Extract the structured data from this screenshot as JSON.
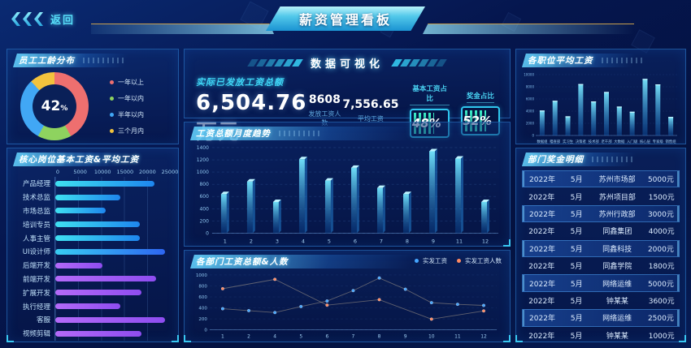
{
  "header": {
    "back_label": "返回",
    "title": "薪资管理看板"
  },
  "stats": {
    "section_title": "数据可视化",
    "total_label": "实际已发放工资总额",
    "total_value": "6,504.76万元",
    "headcount_value": "8608",
    "headcount_label": "发放工资人数",
    "avg_value": "7,556.65",
    "avg_label": "平均工资",
    "basic_ratio_label": "基本工资占比",
    "basic_ratio_value": "48%",
    "bonus_ratio_label": "奖金占比",
    "bonus_ratio_value": "52%"
  },
  "panels": {
    "seniority": {
      "title": "员工工龄分布"
    },
    "positions": {
      "title": "核心岗位基本工资&平均工资"
    },
    "monthly": {
      "title": "工资总额月度趋势"
    },
    "dept": {
      "title": "各部门工资总额&人数"
    },
    "avgpos": {
      "title": "各职位平均工资"
    },
    "bonus": {
      "title": "部门奖金明细"
    }
  },
  "chart_data": [
    {
      "id": "seniority",
      "type": "pie",
      "title": "员工工龄分布",
      "center_value": "42",
      "center_unit": "%",
      "labels": [
        "一年以上",
        "一年以内",
        "半年以内",
        "三个月内"
      ],
      "values": [
        42,
        16,
        30,
        12
      ],
      "colors": [
        "#ee6f6f",
        "#8ed35f",
        "#41a7f5",
        "#f2c23d"
      ],
      "legend_position": "right"
    },
    {
      "id": "positions",
      "type": "bar",
      "orientation": "horizontal",
      "title": "核心岗位基本工资&平均工资",
      "categories": [
        "产品经理",
        "技术总监",
        "市场总监",
        "培训专员",
        "人事主管",
        "UI设计师",
        "后端开发",
        "前端开发",
        "扩展开发",
        "执行经理",
        "客服",
        "视频剪辑"
      ],
      "values": [
        21700,
        14100,
        11000,
        18500,
        18500,
        24000,
        10300,
        21900,
        18800,
        14100,
        24000,
        18800
      ],
      "xlim": [
        0,
        25000
      ],
      "xticks": [
        "0",
        "5000",
        "10000",
        "15000",
        "20000",
        "25000"
      ],
      "bar_colors": [
        [
          "#3fe0f0",
          "#1e86ee"
        ],
        [
          "#3fe0f0",
          "#1e86ee"
        ],
        [
          "#3fe0f0",
          "#1e86ee"
        ],
        [
          "#3fe0f0",
          "#1e86ee"
        ],
        [
          "#3fe0f0",
          "#1e86ee"
        ],
        [
          "#38cdf2",
          "#2e66f2"
        ],
        [
          "#b46af8",
          "#8e4df0"
        ],
        [
          "#b46af8",
          "#8e4df0"
        ],
        [
          "#b46af8",
          "#8e4df0"
        ],
        [
          "#b46af8",
          "#8e4df0"
        ],
        [
          "#b46af8",
          "#8e4df0"
        ],
        [
          "#b46af8",
          "#8e4df0"
        ]
      ]
    },
    {
      "id": "monthly",
      "type": "bar",
      "title": "工资总额月度趋势",
      "categories": [
        "1",
        "2",
        "3",
        "4",
        "5",
        "6",
        "7",
        "8",
        "9",
        "11",
        "12"
      ],
      "values": [
        640,
        845,
        510,
        1210,
        860,
        1070,
        740,
        640,
        1340,
        1220,
        510
      ],
      "ylim": [
        0,
        1400
      ],
      "yticks": [
        0,
        200,
        400,
        600,
        800,
        1000,
        1200,
        1400
      ],
      "bar_gradient": [
        "#74e8ff",
        "#0a57b0"
      ],
      "grid": "dashed"
    },
    {
      "id": "dept",
      "type": "line",
      "title": "各部门工资总额&人数",
      "categories": [
        "1",
        "2",
        "4",
        "5",
        "6",
        "7",
        "8",
        "9",
        "10",
        "11",
        "12"
      ],
      "ylim": [
        0,
        1000
      ],
      "yticks": [
        0,
        200,
        400,
        600,
        800,
        1000
      ],
      "legend_position": "top-right",
      "series": [
        {
          "name": "实发工资",
          "color": "#45a6ff",
          "x_indices": [
            0,
            1,
            2,
            3,
            4,
            5,
            6,
            7,
            8,
            9,
            10
          ],
          "values": [
            385,
            350,
            315,
            425,
            525,
            715,
            945,
            740,
            495,
            465,
            445
          ]
        },
        {
          "name": "实发工资人数",
          "color": "#ff8a62",
          "x_indices": [
            0,
            2,
            4,
            6,
            8,
            10
          ],
          "values": [
            750,
            920,
            450,
            550,
            195,
            345
          ]
        }
      ]
    },
    {
      "id": "avgpos",
      "type": "bar",
      "title": "各职位平均工资",
      "categories": [
        "数据组",
        "稽查部",
        "实习生",
        "决策者",
        "技术部",
        "老干部",
        "大数据",
        "入门级",
        "核心层",
        "专家级",
        "销售组"
      ],
      "values": [
        4100,
        5700,
        3150,
        8450,
        5600,
        7150,
        4750,
        3900,
        9300,
        8400,
        3050
      ],
      "ylim": [
        0,
        10000
      ],
      "yticks": [
        0,
        2000,
        4000,
        6000,
        8000,
        10000
      ],
      "bar_gradient": [
        "#7beaff",
        "#1166c0"
      ]
    }
  ],
  "bonus_table": {
    "rows": [
      {
        "year": "2022年",
        "month": "5月",
        "dept": "苏州市场部",
        "amount": "5000元"
      },
      {
        "year": "2022年",
        "month": "5月",
        "dept": "苏州项目部",
        "amount": "1500元"
      },
      {
        "year": "2022年",
        "month": "5月",
        "dept": "苏州行政部",
        "amount": "3000元"
      },
      {
        "year": "2022年",
        "month": "5月",
        "dept": "同鑫集团",
        "amount": "4000元"
      },
      {
        "year": "2022年",
        "month": "5月",
        "dept": "同鑫科技",
        "amount": "2000元"
      },
      {
        "year": "2022年",
        "month": "5月",
        "dept": "同鑫学院",
        "amount": "1800元"
      },
      {
        "year": "2022年",
        "month": "5月",
        "dept": "网络运维",
        "amount": "5000元"
      },
      {
        "year": "2022年",
        "month": "5月",
        "dept": "钟某某",
        "amount": "3600元"
      },
      {
        "year": "2022年",
        "month": "5月",
        "dept": "网络运维",
        "amount": "2500元"
      },
      {
        "year": "2022年",
        "month": "5月",
        "dept": "钟某某",
        "amount": "1000元"
      }
    ]
  },
  "colors": {
    "accent_cyan": "#3fd6f6",
    "accent_gold": "#c79f4e",
    "panel_border": "#3084d8",
    "stripe_teal": "#3ae9c4"
  }
}
